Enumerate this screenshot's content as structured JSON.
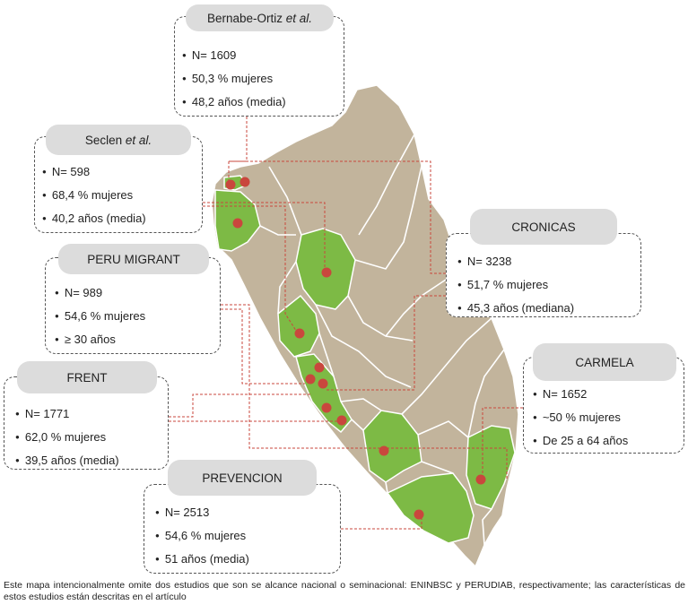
{
  "colors": {
    "region_default": "#c2b49c",
    "region_study": "#7dba45",
    "border": "#ffffff",
    "marker": "#c9473d",
    "connector": "#c9473d",
    "title_bg": "#dcdcdc"
  },
  "studies": [
    {
      "id": "bernabe",
      "title": "Bernabe-Ortiz",
      "title_suffix": "et al.",
      "items": [
        "N= 1609",
        "50,3 % mujeres",
        "48,2 años (media)"
      ]
    },
    {
      "id": "seclen",
      "title": "Seclen",
      "title_suffix": "et al.",
      "items": [
        "N= 598",
        "68,4 % mujeres",
        "40,2 años (media)"
      ]
    },
    {
      "id": "perumigrant",
      "title": "PERU MIGRANT",
      "title_suffix": "",
      "items": [
        "N= 989",
        "54,6 % mujeres",
        "≥ 30 años"
      ]
    },
    {
      "id": "frent",
      "title": "FRENT",
      "title_suffix": "",
      "items": [
        "N= 1771",
        "62,0 % mujeres",
        "39,5 años (media)"
      ]
    },
    {
      "id": "prevencion",
      "title": "PREVENCION",
      "title_suffix": "",
      "items": [
        "N= 2513",
        "54,6 % mujeres",
        "51 años (media)"
      ]
    },
    {
      "id": "cronicas",
      "title": "CRONICAS",
      "title_suffix": "",
      "items": [
        "N= 3238",
        "51,7 % mujeres",
        "45,3 años (mediana)"
      ]
    },
    {
      "id": "carmela",
      "title": "CARMELA",
      "title_suffix": "",
      "items": [
        "N= 1652",
        "~50 % mujeres",
        "De 25 a 64 años"
      ]
    }
  ],
  "footnote": "Este mapa intencionalmente omite dos estudios que son se alcance nacional o seminacional: ENINBSC y PERUDIAB, respectivamente; las características de estos estudios están descritas en el artículo"
}
